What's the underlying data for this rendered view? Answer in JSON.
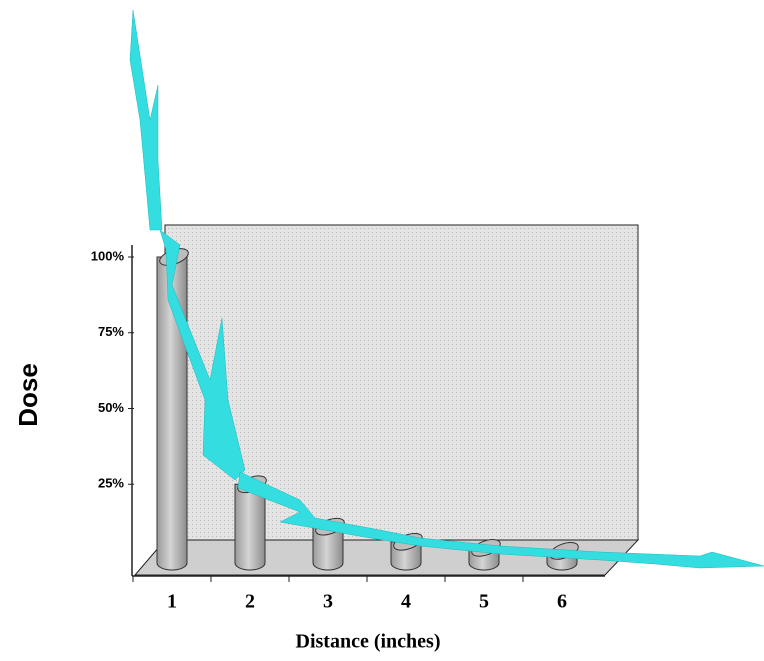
{
  "chart_data": {
    "type": "bar",
    "x_label": "Distance (inches)",
    "y_label": "Dose",
    "categories": [
      "1",
      "2",
      "3",
      "4",
      "5",
      "6"
    ],
    "values": [
      100,
      25,
      11,
      6,
      4,
      3
    ],
    "color": "#bdbdbd",
    "ylim": [
      0,
      100
    ],
    "yticks": [
      {
        "value": 25,
        "label": "25%"
      },
      {
        "value": 50,
        "label": "50%"
      },
      {
        "value": 75,
        "label": "75%"
      },
      {
        "value": 100,
        "label": "100%"
      }
    ]
  }
}
